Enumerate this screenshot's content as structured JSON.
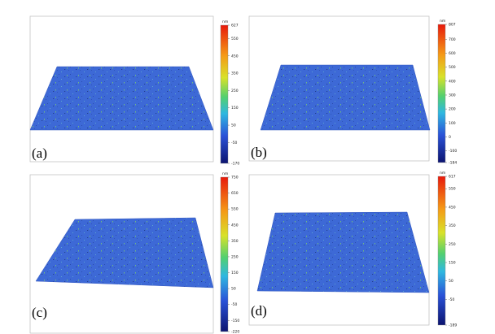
{
  "panels": [
    {
      "label": "(a)",
      "colorbar": {
        "unit": "nm",
        "ticks": [
          627,
          550,
          450,
          350,
          250,
          150,
          50,
          -50,
          -170
        ]
      }
    },
    {
      "label": "(b)",
      "colorbar": {
        "unit": "nm",
        "ticks": [
          807,
          700,
          600,
          500,
          400,
          300,
          200,
          100,
          0,
          -100,
          -184
        ]
      }
    },
    {
      "label": "(c)",
      "colorbar": {
        "unit": "nm",
        "ticks": [
          750,
          650,
          550,
          450,
          350,
          250,
          150,
          50,
          -50,
          -150,
          -220
        ]
      }
    },
    {
      "label": "(d)",
      "colorbar": {
        "unit": "nm",
        "ticks": [
          617,
          550,
          450,
          350,
          250,
          150,
          50,
          -50,
          -189
        ]
      }
    }
  ]
}
